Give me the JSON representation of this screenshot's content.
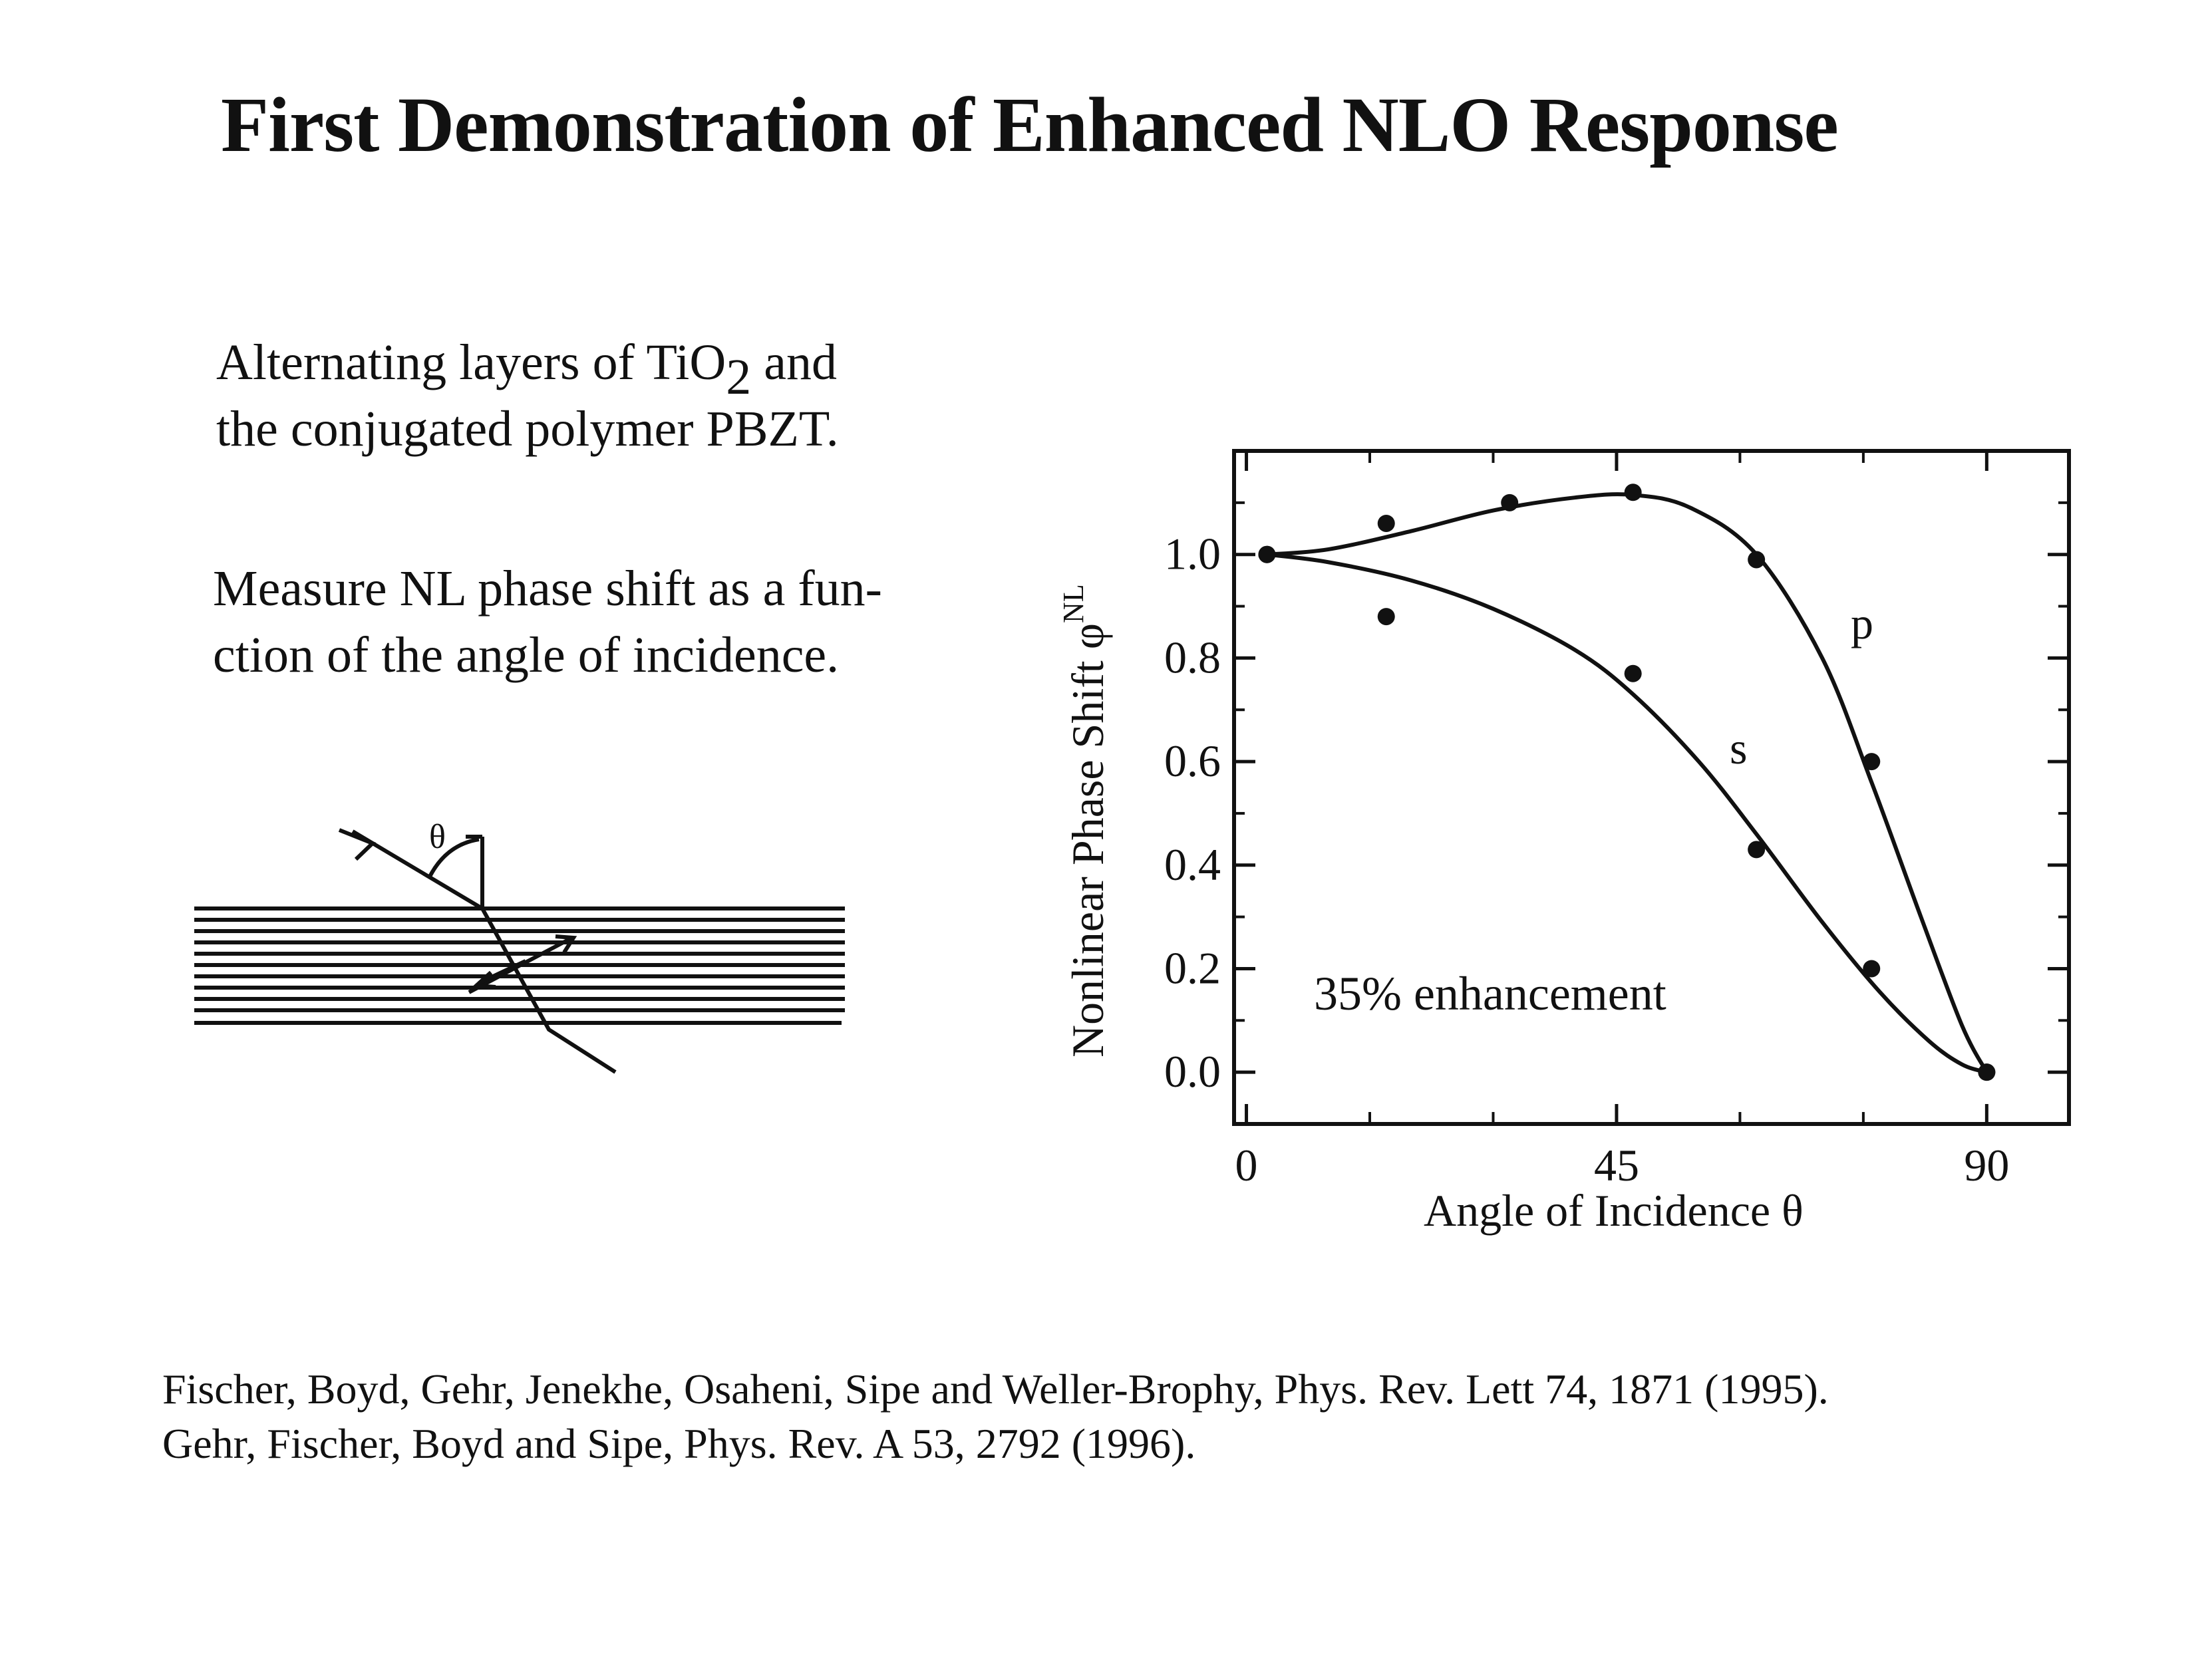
{
  "slide": {
    "title": "First Demonstration of Enhanced NLO Response",
    "paragraph1": {
      "line1_pre": "Alternating layers of TiO",
      "line1_sub": "2",
      "line1_post": " and",
      "line2": "the conjugated polymer PBZT."
    },
    "paragraph2": {
      "line1": "Measure NL phase shift as a fun-",
      "line2": "ction of the angle of incidence."
    },
    "diagram": {
      "angle_label": "θ"
    },
    "references": [
      "Fischer, Boyd, Gehr, Jenekhe, Osaheni, Sipe and Weller-Brophy, Phys. Rev. Lett 74, 1871 (1995).",
      "Gehr, Fischer, Boyd and Sipe, Phys. Rev. A 53, 2792 (1996)."
    ]
  },
  "chart_data": {
    "type": "scatter",
    "title": "",
    "xlabel": "Angle of Incidence θ",
    "ylabel": "Nonlinear Phase Shift φ",
    "ylabel_superscript": "NL",
    "xlim": [
      -1.5,
      100
    ],
    "ylim": [
      -0.1,
      1.2
    ],
    "x_ticks": [
      0,
      45,
      90
    ],
    "x_tick_labels": [
      "0",
      "45",
      "90"
    ],
    "y_ticks": [
      0.0,
      0.2,
      0.4,
      0.6,
      0.8,
      1.0
    ],
    "y_tick_labels": [
      "0.0",
      "0.2",
      "0.4",
      "0.6",
      "0.8",
      "1.0"
    ],
    "grid": false,
    "annotation": "35% enhancement",
    "series": [
      {
        "name": "p",
        "points": [
          {
            "x": 2.5,
            "y": 1.0
          },
          {
            "x": 17,
            "y": 1.06
          },
          {
            "x": 32,
            "y": 1.1
          },
          {
            "x": 47,
            "y": 1.12
          },
          {
            "x": 62,
            "y": 0.99
          },
          {
            "x": 76,
            "y": 0.6
          },
          {
            "x": 90,
            "y": 0.0
          }
        ],
        "fit": [
          {
            "x": 2.5,
            "y": 1.0
          },
          {
            "x": 10,
            "y": 1.01
          },
          {
            "x": 20,
            "y": 1.045
          },
          {
            "x": 30,
            "y": 1.085
          },
          {
            "x": 40,
            "y": 1.11
          },
          {
            "x": 47,
            "y": 1.115
          },
          {
            "x": 54,
            "y": 1.09
          },
          {
            "x": 62,
            "y": 1.0
          },
          {
            "x": 70,
            "y": 0.8
          },
          {
            "x": 76,
            "y": 0.56
          },
          {
            "x": 82,
            "y": 0.3
          },
          {
            "x": 87,
            "y": 0.09
          },
          {
            "x": 90,
            "y": 0.0
          }
        ]
      },
      {
        "name": "s",
        "points": [
          {
            "x": 2.5,
            "y": 1.0
          },
          {
            "x": 17,
            "y": 0.88
          },
          {
            "x": 47,
            "y": 0.77
          },
          {
            "x": 62,
            "y": 0.43
          },
          {
            "x": 76,
            "y": 0.2
          },
          {
            "x": 90,
            "y": 0.0
          }
        ],
        "fit": [
          {
            "x": 2.5,
            "y": 1.0
          },
          {
            "x": 10,
            "y": 0.985
          },
          {
            "x": 20,
            "y": 0.95
          },
          {
            "x": 30,
            "y": 0.895
          },
          {
            "x": 40,
            "y": 0.815
          },
          {
            "x": 47,
            "y": 0.73
          },
          {
            "x": 55,
            "y": 0.6
          },
          {
            "x": 62,
            "y": 0.46
          },
          {
            "x": 70,
            "y": 0.29
          },
          {
            "x": 77,
            "y": 0.155
          },
          {
            "x": 83,
            "y": 0.06
          },
          {
            "x": 87,
            "y": 0.015
          },
          {
            "x": 90,
            "y": 0.0
          }
        ]
      }
    ]
  }
}
